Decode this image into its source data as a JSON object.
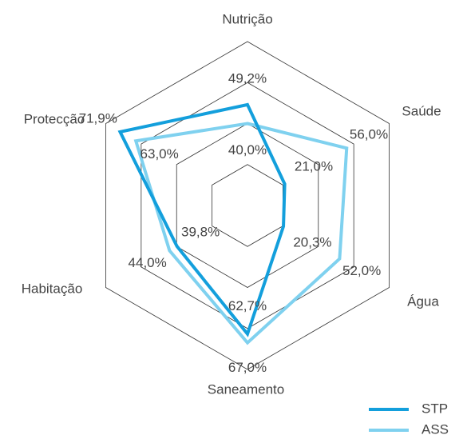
{
  "chart_data": {
    "type": "radar",
    "categories": [
      "Nutrição",
      "Saúde",
      "Água",
      "Saneamento",
      "Habitação",
      "Protecção"
    ],
    "ylim": [
      0,
      80
    ],
    "yticks": [
      20,
      40,
      60,
      80
    ],
    "grid": true,
    "legend": "bottom-right",
    "series": [
      {
        "name": "STP",
        "color": "#139fdc",
        "values": [
          49.2,
          21.0,
          20.3,
          62.7,
          39.8,
          71.9
        ],
        "value_labels": [
          "49,2%",
          "21,0%",
          "20,3%",
          "62,7%",
          "39,8%",
          "71,9%"
        ]
      },
      {
        "name": "ASS",
        "color": "#7fd1ef",
        "values": [
          40.0,
          56.0,
          52.0,
          67.0,
          44.0,
          63.0
        ],
        "value_labels": [
          "40,0%",
          "56,0%",
          "52,0%",
          "67,0%",
          "44,0%",
          "63,0%"
        ]
      }
    ]
  }
}
